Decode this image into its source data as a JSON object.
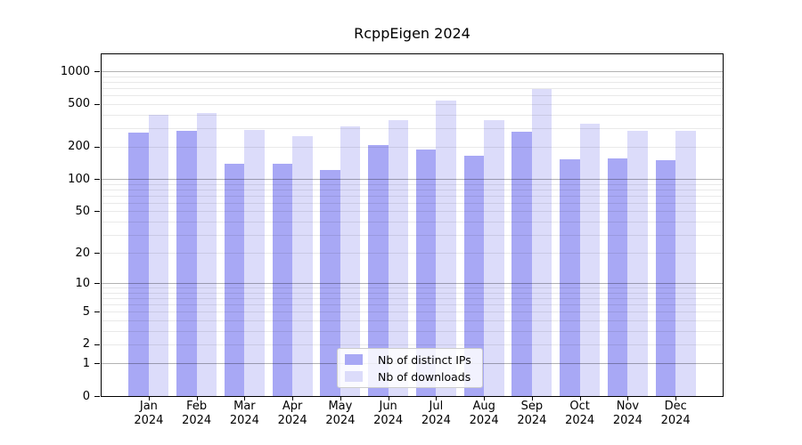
{
  "title": "RcppEigen 2024",
  "chart_data": {
    "type": "bar",
    "title": "RcppEigen 2024",
    "categories": [
      "Jan",
      "Feb",
      "Mar",
      "Apr",
      "May",
      "Jun",
      "Jul",
      "Aug",
      "Sep",
      "Oct",
      "Nov",
      "Dec"
    ],
    "x_tick_year": "2024",
    "series": [
      {
        "name": "Nb of distinct IPs",
        "color": "#a8a8f5",
        "values": [
          270,
          281,
          138,
          140,
          122,
          209,
          190,
          165,
          277,
          152,
          157,
          149
        ]
      },
      {
        "name": "Nb of downloads",
        "color": "#dcdcfa",
        "values": [
          395,
          410,
          287,
          251,
          310,
          353,
          540,
          353,
          684,
          327,
          281,
          281
        ]
      }
    ],
    "y_ticks": [
      0,
      1,
      2,
      5,
      10,
      20,
      50,
      100,
      200,
      500,
      1000
    ],
    "y_scale": "log1p",
    "ylim": [
      0,
      1440
    ],
    "grid": true,
    "legend_position": "lower-center-inside",
    "xlabel": "",
    "ylabel": ""
  },
  "colors": {
    "major_grid": "rgba(0,0,0,0.30)",
    "minor_grid": "rgba(0,0,0,0.085)",
    "axis": "#000000",
    "legend_border": "#cccccc",
    "background": "#ffffff"
  }
}
